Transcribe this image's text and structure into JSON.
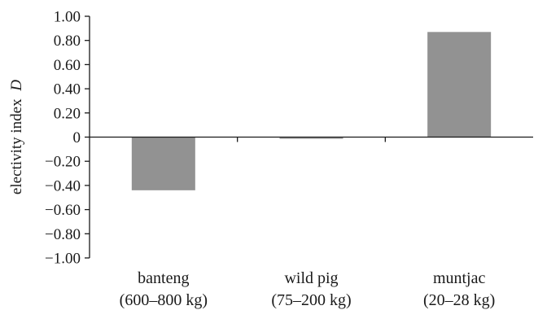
{
  "chart_data": {
    "type": "bar",
    "categories": [
      "banteng",
      "wild pig",
      "muntjac"
    ],
    "category_sublabels": [
      "(600–800 kg)",
      "(75–200 kg)",
      "(20–28 kg)"
    ],
    "values": [
      -0.44,
      -0.01,
      0.87
    ],
    "title": "",
    "xlabel": "",
    "ylabel": "electivity index",
    "ylabel_italic_symbol": "D",
    "ylim": [
      -1.0,
      1.0
    ],
    "yticks": [
      "1.00",
      "0.80",
      "0.60",
      "0.40",
      "0.20",
      "0",
      "−0.20",
      "−0.40",
      "−0.60",
      "−0.80",
      "−1.00"
    ],
    "ytick_values": [
      1.0,
      0.8,
      0.6,
      0.4,
      0.2,
      0,
      -0.2,
      -0.4,
      -0.6,
      -0.8,
      -1.0
    ],
    "grid": false,
    "legend": "none",
    "bar_color": "#929292"
  }
}
